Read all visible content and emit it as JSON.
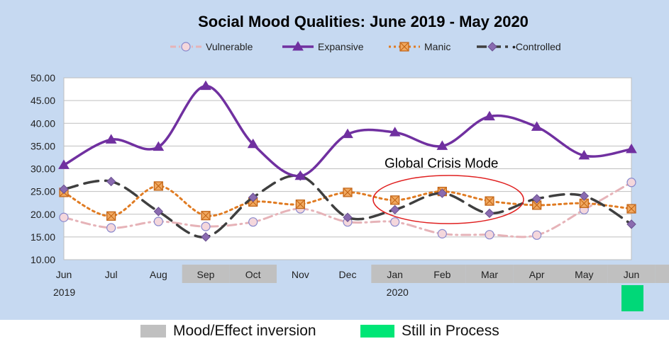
{
  "chart_data": {
    "type": "line",
    "title": "Social Mood Qualities:  June 2019 - May 2020",
    "categories": [
      "Jun",
      "Jul",
      "Aug",
      "Sep",
      "Oct",
      "Nov",
      "Dec",
      "Jan",
      "Feb",
      "Mar",
      "Apr",
      "May",
      "Jun"
    ],
    "year_labels": [
      {
        "index": 0,
        "text": "2019"
      },
      {
        "index": 7,
        "text": "2020"
      }
    ],
    "y_ticks": [
      "10.00",
      "15.00",
      "20.00",
      "25.00",
      "30.00",
      "35.00",
      "40.00",
      "45.00",
      "50.00"
    ],
    "ylim": [
      10,
      50
    ],
    "grid": "horizontal",
    "legend_position": "top",
    "series": [
      {
        "name": "Vulnerable",
        "color": "#e6b3b8",
        "marker": "circle",
        "dash": "dash-dot",
        "values": [
          19.3,
          17.0,
          18.4,
          17.3,
          18.3,
          21.2,
          18.3,
          18.3,
          15.7,
          15.5,
          15.4,
          21.0,
          27.0
        ]
      },
      {
        "name": "Expansive",
        "color": "#7030a0",
        "marker": "triangle",
        "dash": "solid",
        "values": [
          30.8,
          36.4,
          34.8,
          48.2,
          35.4,
          28.4,
          37.6,
          38.0,
          35.0,
          41.5,
          39.2,
          32.9,
          34.3
        ]
      },
      {
        "name": "Manic",
        "color": "#e07b22",
        "marker": "square",
        "dash": "dot",
        "values": [
          24.8,
          19.6,
          26.2,
          19.7,
          22.7,
          22.2,
          24.8,
          23.1,
          25.0,
          22.9,
          22.0,
          22.4,
          21.2
        ]
      },
      {
        "name": "Controlled",
        "color": "#3f3f3f",
        "marker": "diamond",
        "dash": "long-dash",
        "values": [
          25.5,
          27.2,
          20.6,
          15.0,
          23.7,
          28.4,
          19.3,
          21.0,
          24.6,
          20.2,
          23.4,
          24.0,
          17.8
        ]
      }
    ],
    "annotation": {
      "text": "Global Crisis Mode",
      "color": "#e02020"
    },
    "highlight_months": {
      "inversion": [
        "Sep",
        "Oct",
        "Jan",
        "Feb",
        "Mar",
        "Apr",
        "May",
        "Jun"
      ],
      "in_process": [
        "Jun"
      ]
    }
  },
  "legend_bottom": {
    "inversion": {
      "label": "Mood/Effect inversion",
      "color": "#c0c0c0"
    },
    "in_process": {
      "label": "Still in Process",
      "color": "#00e676"
    }
  },
  "colors": {
    "background": "#c6d9f1",
    "plot_area": "#ffffff",
    "inversion_band": "#c0c0c0",
    "in_process_box": "#00d878"
  }
}
